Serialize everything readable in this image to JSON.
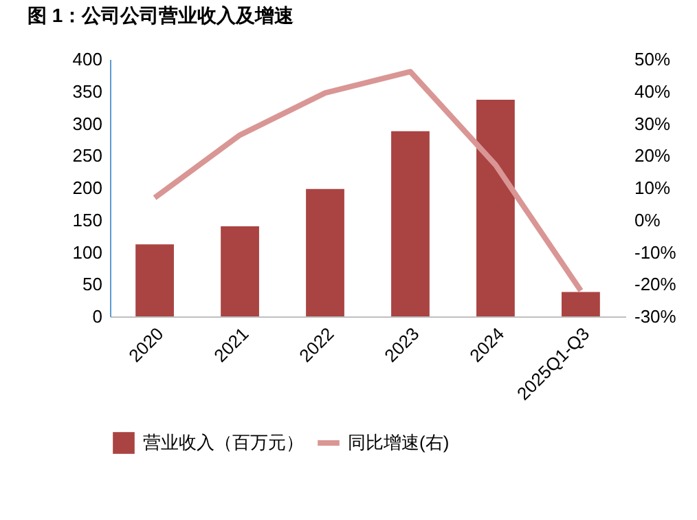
{
  "chart_data": {
    "type": "bar",
    "title": "图 1：公司公司营业收入及增速",
    "categories": [
      "2020",
      "2021",
      "2022",
      "2023",
      "2024",
      "2025Q1-Q3"
    ],
    "series": [
      {
        "name": "营业收入（百万元）",
        "color": "#a94442",
        "values": [
          112,
          140,
          198,
          288,
          337,
          38
        ]
      },
      {
        "name": "同比增速(右)",
        "type": "line",
        "axis": "y2",
        "color": "#d99694",
        "values": [
          6.9,
          26.4,
          39.5,
          46.1,
          17.1,
          -22
        ]
      }
    ],
    "ylim": [
      0,
      400
    ],
    "yticks": [
      0,
      50,
      100,
      150,
      200,
      250,
      300,
      350,
      400
    ],
    "y2lim": [
      -30,
      50
    ],
    "y2ticks": [
      {
        "value": -30,
        "label": "-30%"
      },
      {
        "value": -20,
        "label": "-20%"
      },
      {
        "value": -10,
        "label": "-10%"
      },
      {
        "value": 0,
        "label": "0%"
      },
      {
        "value": 10,
        "label": "10%"
      },
      {
        "value": 20,
        "label": "20%"
      },
      {
        "value": 30,
        "label": "30%"
      },
      {
        "value": 40,
        "label": "40%"
      },
      {
        "value": 50,
        "label": "50%"
      }
    ],
    "grid": false,
    "legend": "bottom",
    "marker": "none",
    "line_style": "solid"
  }
}
